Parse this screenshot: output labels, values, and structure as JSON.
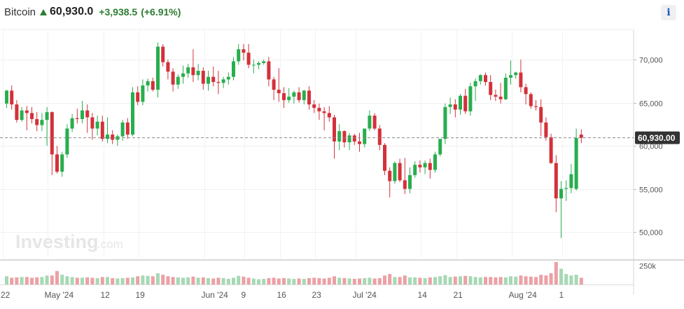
{
  "header": {
    "name": "Bitcoin",
    "price": "60,930.0",
    "change": "+3,938.5",
    "change_pct": "(+6.91%)",
    "info_label": "i",
    "up_color": "#2e7d32"
  },
  "watermark": {
    "brand": "Investing",
    "suffix": ".com"
  },
  "colors": {
    "up": "#27ae4e",
    "down": "#d3313a",
    "vol_up": "#a5d9b5",
    "vol_down": "#eca0a5",
    "price_line": "#888888"
  },
  "chart_data": {
    "type": "candlestick",
    "y_range": [
      47000,
      73500
    ],
    "y_ticks": [
      50000,
      55000,
      60000,
      65000,
      70000
    ],
    "y_tick_labels": [
      "50,000",
      "55,000",
      "60,000",
      "65,000",
      "70,000"
    ],
    "current_price": 60930,
    "current_price_label": "60,930.00",
    "volume_tick": 250000,
    "volume_tick_label": "250k",
    "x_labels": [
      {
        "label": "22",
        "at": 0
      },
      {
        "label": "May '24",
        "at": 9
      },
      {
        "label": "12",
        "at": 20
      },
      {
        "label": "19",
        "at": 27
      },
      {
        "label": "Jun '24",
        "at": 40
      },
      {
        "label": "9",
        "at": 48
      },
      {
        "label": "16",
        "at": 55
      },
      {
        "label": "23",
        "at": 62
      },
      {
        "label": "Jul '24",
        "at": 70
      },
      {
        "label": "14",
        "at": 83
      },
      {
        "label": "21",
        "at": 90
      },
      {
        "label": "Aug '24",
        "at": 101
      },
      {
        "label": "1",
        "at": 111
      }
    ],
    "ohlc": [
      [
        64900,
        66500,
        64400,
        66400
      ],
      [
        66400,
        67000,
        64200,
        64800
      ],
      [
        64800,
        65300,
        62700,
        63000
      ],
      [
        63000,
        64500,
        62800,
        64100
      ],
      [
        64100,
        64600,
        61800,
        63800
      ],
      [
        63800,
        64500,
        62600,
        63100
      ],
      [
        63100,
        63900,
        61700,
        62400
      ],
      [
        62400,
        63800,
        61700,
        63000
      ],
      [
        63000,
        64500,
        60000,
        63900
      ],
      [
        63900,
        64000,
        56600,
        59000
      ],
      [
        59000,
        60000,
        56800,
        57000
      ],
      [
        57000,
        59300,
        56400,
        59000
      ],
      [
        59000,
        62500,
        58600,
        62000
      ],
      [
        62000,
        63700,
        61600,
        63200
      ],
      [
        63200,
        64300,
        62600,
        63100
      ],
      [
        63100,
        65200,
        62600,
        64100
      ],
      [
        64100,
        64800,
        61500,
        63300
      ],
      [
        63300,
        63800,
        60700,
        62000
      ],
      [
        62000,
        63500,
        61200,
        62800
      ],
      [
        62800,
        63500,
        60500,
        60800
      ],
      [
        60800,
        63300,
        60300,
        61300
      ],
      [
        61300,
        61800,
        60200,
        60700
      ],
      [
        60700,
        61300,
        60000,
        61100
      ],
      [
        61100,
        63000,
        60600,
        62700
      ],
      [
        62700,
        63200,
        60800,
        61300
      ],
      [
        61300,
        66800,
        61100,
        66200
      ],
      [
        66200,
        66900,
        64700,
        65100
      ],
      [
        65100,
        67700,
        64700,
        67000
      ],
      [
        67000,
        67800,
        66300,
        67500
      ],
      [
        67500,
        67900,
        66300,
        66500
      ],
      [
        66500,
        72000,
        65600,
        71500
      ],
      [
        71500,
        71800,
        69200,
        69700
      ],
      [
        69700,
        70000,
        67700,
        68600
      ],
      [
        68600,
        69000,
        66300,
        67100
      ],
      [
        67100,
        68300,
        66600,
        68000
      ],
      [
        68000,
        69300,
        67200,
        68400
      ],
      [
        68400,
        69500,
        67900,
        69100
      ],
      [
        69100,
        71200,
        67400,
        68200
      ],
      [
        68200,
        69500,
        67600,
        68700
      ],
      [
        68700,
        69100,
        66500,
        67200
      ],
      [
        67200,
        68700,
        66400,
        68000
      ],
      [
        68000,
        69200,
        66900,
        67400
      ],
      [
        67400,
        68700,
        66000,
        67300
      ],
      [
        67300,
        68000,
        66700,
        67700
      ],
      [
        67700,
        68500,
        67100,
        68000
      ],
      [
        68000,
        70300,
        67600,
        69800
      ],
      [
        69800,
        71800,
        69400,
        71200
      ],
      [
        71200,
        71800,
        69900,
        70800
      ],
      [
        70800,
        71800,
        69000,
        69400
      ],
      [
        69400,
        70000,
        68400,
        69400
      ],
      [
        69400,
        69800,
        68900,
        69600
      ],
      [
        69600,
        70000,
        69400,
        69800
      ],
      [
        69800,
        70300,
        66900,
        67700
      ],
      [
        67700,
        68000,
        65300,
        66500
      ],
      [
        66500,
        69000,
        65100,
        66100
      ],
      [
        66100,
        66800,
        64400,
        65300
      ],
      [
        65300,
        66700,
        65000,
        65700
      ],
      [
        65700,
        66400,
        64900,
        66200
      ],
      [
        66200,
        66800,
        65000,
        65300
      ],
      [
        65300,
        66500,
        64800,
        66400
      ],
      [
        66400,
        66900,
        64200,
        64800
      ],
      [
        64800,
        65300,
        63800,
        64400
      ],
      [
        64400,
        64900,
        63000,
        64000
      ],
      [
        64000,
        64500,
        61800,
        63800
      ],
      [
        63800,
        64600,
        62800,
        63300
      ],
      [
        63300,
        63600,
        58500,
        60500
      ],
      [
        60500,
        62500,
        59500,
        61700
      ],
      [
        61700,
        61800,
        59800,
        60400
      ],
      [
        60400,
        61500,
        59500,
        61200
      ],
      [
        61200,
        61400,
        60100,
        60500
      ],
      [
        60500,
        61500,
        59300,
        60200
      ],
      [
        60200,
        62000,
        59800,
        62000
      ],
      [
        62000,
        64100,
        61700,
        63500
      ],
      [
        63500,
        63800,
        61800,
        62000
      ],
      [
        62000,
        62400,
        59500,
        60100
      ],
      [
        60100,
        60300,
        56600,
        57100
      ],
      [
        57100,
        57500,
        54000,
        55900
      ],
      [
        55900,
        58200,
        55600,
        58000
      ],
      [
        58000,
        58500,
        55800,
        56000
      ],
      [
        56000,
        58600,
        54400,
        55000
      ],
      [
        55000,
        57500,
        54500,
        56600
      ],
      [
        56600,
        58200,
        56300,
        57800
      ],
      [
        57800,
        58300,
        56900,
        57500
      ],
      [
        57500,
        58300,
        56700,
        58000
      ],
      [
        58000,
        58500,
        56200,
        57200
      ],
      [
        57200,
        59300,
        56900,
        59000
      ],
      [
        59000,
        60800,
        58800,
        60800
      ],
      [
        60800,
        64900,
        60200,
        64500
      ],
      [
        64500,
        65600,
        63700,
        64800
      ],
      [
        64800,
        65400,
        63300,
        64200
      ],
      [
        64200,
        66000,
        63600,
        65800
      ],
      [
        65800,
        66600,
        63700,
        64000
      ],
      [
        64000,
        67300,
        63500,
        66900
      ],
      [
        66900,
        67800,
        65200,
        67500
      ],
      [
        67500,
        68300,
        67100,
        68200
      ],
      [
        68200,
        68500,
        67000,
        67400
      ],
      [
        67400,
        68200,
        65300,
        65900
      ],
      [
        65900,
        66500,
        65200,
        65700
      ],
      [
        65700,
        67300,
        64900,
        65400
      ],
      [
        65400,
        68400,
        65300,
        67900
      ],
      [
        67900,
        69900,
        67100,
        68200
      ],
      [
        68200,
        68600,
        67800,
        68500
      ],
      [
        68500,
        70000,
        66200,
        66800
      ],
      [
        66800,
        67200,
        64800,
        66000
      ],
      [
        66000,
        66200,
        64300,
        64600
      ],
      [
        64600,
        65300,
        64100,
        64500
      ],
      [
        64500,
        65400,
        61100,
        62700
      ],
      [
        62700,
        63300,
        60600,
        61000
      ],
      [
        61000,
        61400,
        57900,
        58000
      ],
      [
        58000,
        58900,
        52300,
        53900
      ],
      [
        53900,
        55900,
        49300,
        55000
      ],
      [
        55000,
        56000,
        53600,
        55100
      ],
      [
        55100,
        57900,
        54500,
        56700
      ],
      [
        55000,
        62000,
        54800,
        60900
      ],
      [
        61300,
        61900,
        60300,
        60930
      ]
    ],
    "volumes": [
      110000,
      90000,
      95000,
      100000,
      100000,
      90000,
      95000,
      100000,
      120000,
      120000,
      180000,
      130000,
      110000,
      100000,
      90000,
      90000,
      95000,
      90000,
      85000,
      100000,
      100000,
      85000,
      80000,
      85000,
      90000,
      95000,
      110000,
      120000,
      115000,
      110000,
      150000,
      130000,
      110000,
      100000,
      95000,
      90000,
      95000,
      105000,
      90000,
      95000,
      85000,
      80000,
      90000,
      85000,
      75000,
      90000,
      115000,
      105000,
      90000,
      80000,
      70000,
      75000,
      85000,
      90000,
      80000,
      85000,
      80000,
      75000,
      80000,
      75000,
      85000,
      90000,
      85000,
      80000,
      90000,
      110000,
      90000,
      85000,
      80000,
      75000,
      80000,
      85000,
      90000,
      80000,
      85000,
      120000,
      140000,
      100000,
      100000,
      120000,
      95000,
      95000,
      90000,
      85000,
      95000,
      100000,
      110000,
      125000,
      100000,
      105000,
      110000,
      115000,
      110000,
      100000,
      95000,
      100000,
      100000,
      95000,
      100000,
      95000,
      110000,
      105000,
      120000,
      110000,
      105000,
      100000,
      130000,
      120000,
      150000,
      300000,
      210000,
      140000,
      120000,
      130000,
      90000
    ]
  }
}
